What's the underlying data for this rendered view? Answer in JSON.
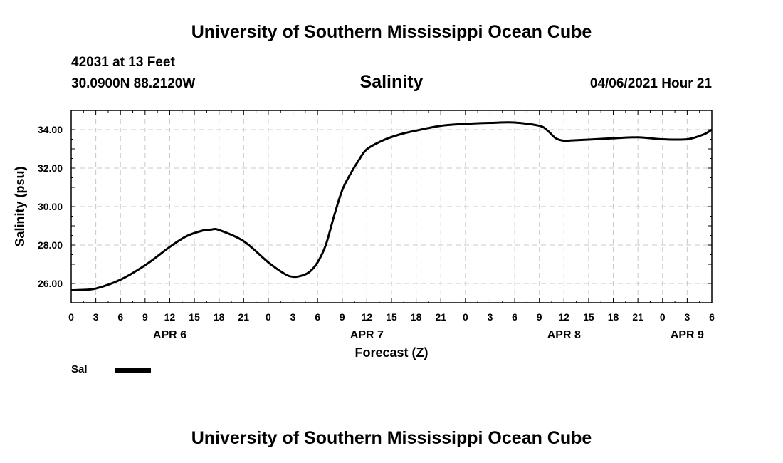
{
  "header": {
    "top_title": "University of Southern Mississippi Ocean Cube",
    "station": "42031 at 13 Feet",
    "coords": "30.0900N  88.2120W",
    "chart_title": "Salinity",
    "datetime": "04/06/2021 Hour 21",
    "bottom_title": "University of Southern Mississippi Ocean Cube"
  },
  "legend": {
    "label": "Sal",
    "color": "#000000"
  },
  "chart_data": {
    "type": "line",
    "title": "Salinity",
    "xlabel": "Forecast (Z)",
    "ylabel": "Salinity (psu)",
    "xlim": [
      0,
      78
    ],
    "ylim": [
      25.0,
      35.0
    ],
    "grid": true,
    "x_ticks": [
      0,
      3,
      6,
      9,
      12,
      15,
      18,
      21,
      24,
      27,
      30,
      33,
      36,
      39,
      42,
      45,
      48,
      51,
      54,
      57,
      60,
      63,
      66,
      69,
      72,
      75,
      78
    ],
    "x_tick_labels": [
      "0",
      "3",
      "6",
      "9",
      "12",
      "15",
      "18",
      "21",
      "0",
      "3",
      "6",
      "9",
      "12",
      "15",
      "18",
      "21",
      "0",
      "3",
      "6",
      "9",
      "12",
      "15",
      "18",
      "21",
      "0",
      "3",
      "6"
    ],
    "y_ticks": [
      26,
      28,
      30,
      32,
      34
    ],
    "y_tick_labels": [
      "26.00",
      "28.00",
      "30.00",
      "32.00",
      "34.00"
    ],
    "day_labels": [
      {
        "x": 12,
        "label": "APR 6"
      },
      {
        "x": 36,
        "label": "APR 7"
      },
      {
        "x": 60,
        "label": "APR 8"
      },
      {
        "x": 75,
        "label": "APR 9"
      }
    ],
    "series": [
      {
        "name": "Sal",
        "x": [
          0,
          1,
          3,
          6,
          9,
          12,
          14,
          16,
          17,
          18,
          21,
          24,
          26,
          27,
          28,
          29,
          30,
          31,
          32,
          33,
          34,
          35,
          36,
          38,
          40,
          42,
          45,
          48,
          51,
          54,
          57,
          58,
          59,
          60,
          61,
          63,
          66,
          69,
          72,
          75,
          77,
          78
        ],
        "values": [
          25.65,
          25.66,
          25.74,
          26.2,
          26.95,
          27.9,
          28.45,
          28.75,
          28.8,
          28.78,
          28.2,
          27.1,
          26.5,
          26.35,
          26.4,
          26.6,
          27.1,
          28.0,
          29.5,
          30.85,
          31.7,
          32.4,
          32.98,
          33.45,
          33.75,
          33.95,
          34.2,
          34.3,
          34.35,
          34.37,
          34.2,
          33.95,
          33.55,
          33.42,
          33.44,
          33.48,
          33.55,
          33.6,
          33.5,
          33.5,
          33.75,
          34.0
        ]
      }
    ]
  }
}
